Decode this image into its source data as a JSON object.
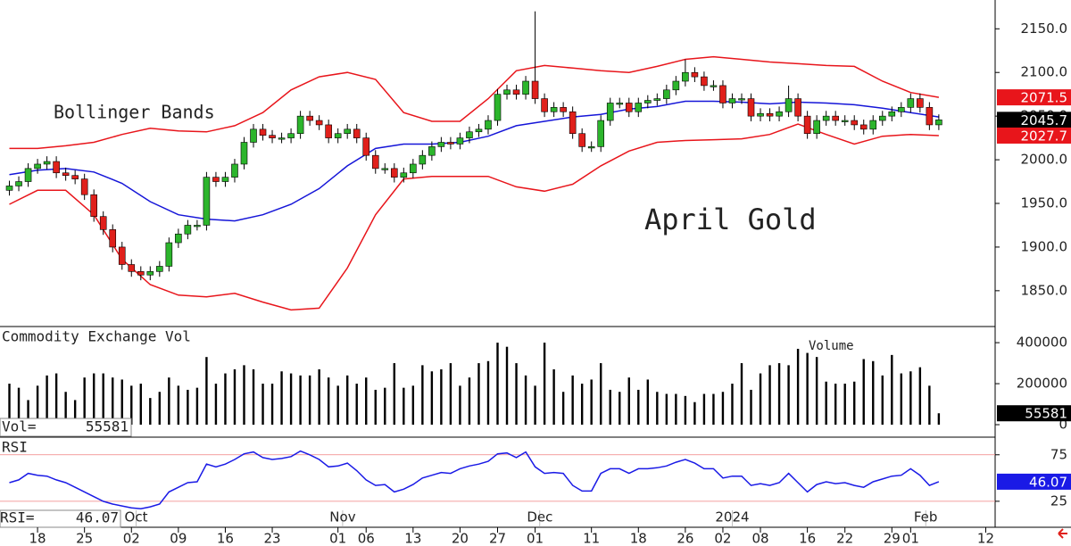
{
  "chart_data": [
    {
      "type": "candlestick",
      "title": "April Gold",
      "label": "Bollinger Bands",
      "xlim": [
        -1,
        105
      ],
      "x": [
        0,
        1,
        2,
        3,
        4,
        5,
        6,
        7,
        8,
        9,
        10,
        11,
        12,
        13,
        14,
        15,
        16,
        17,
        18,
        19,
        20,
        21,
        22,
        23,
        24,
        25,
        26,
        27,
        28,
        29,
        30,
        31,
        32,
        33,
        34,
        35,
        36,
        37,
        38,
        39,
        40,
        41,
        42,
        43,
        44,
        45,
        46,
        47,
        48,
        49,
        50,
        51,
        52,
        53,
        54,
        55,
        56,
        57,
        58,
        59,
        60,
        61,
        62,
        63,
        64,
        65,
        66,
        67,
        68,
        69,
        70,
        71,
        72,
        73,
        74,
        75,
        76,
        77,
        78,
        79,
        80,
        81,
        82,
        83,
        84,
        85,
        86,
        87,
        88,
        89,
        90,
        91,
        92,
        93,
        94,
        95,
        96,
        97,
        98,
        99
      ],
      "open": [
        1965,
        1970,
        1975,
        1990,
        1995,
        1998,
        1985,
        1982,
        1978,
        1960,
        1935,
        1920,
        1900,
        1880,
        1872,
        1868,
        1872,
        1878,
        1905,
        1915,
        1925,
        1925,
        1980,
        1975,
        1980,
        1995,
        2020,
        2035,
        2028,
        2025,
        2025,
        2030,
        2050,
        2045,
        2040,
        2025,
        2030,
        2035,
        2025,
        2005,
        1990,
        1990,
        1980,
        1985,
        1995,
        2005,
        2015,
        2020,
        2018,
        2025,
        2032,
        2035,
        2045,
        2075,
        2080,
        2075,
        2090,
        2070,
        2055,
        2060,
        2055,
        2030,
        2015,
        2015,
        2045,
        2065,
        2065,
        2055,
        2065,
        2068,
        2070,
        2080,
        2090,
        2100,
        2095,
        2085,
        2085,
        2065,
        2070,
        2070,
        2050,
        2053,
        2050,
        2055,
        2070,
        2050,
        2030,
        2045,
        2050,
        2045,
        2045,
        2040,
        2035,
        2045,
        2050,
        2055,
        2060,
        2070,
        2060,
        2040
      ],
      "high": [
        1976,
        1981,
        1996,
        2001,
        2004,
        2004,
        1991,
        1988,
        1984,
        1966,
        1941,
        1926,
        1906,
        1886,
        1878,
        1878,
        1884,
        1911,
        1921,
        1931,
        1931,
        1986,
        1986,
        1986,
        2001,
        2026,
        2041,
        2041,
        2034,
        2031,
        2036,
        2056,
        2056,
        2051,
        2046,
        2036,
        2041,
        2041,
        2031,
        2011,
        1996,
        1996,
        1991,
        2001,
        2011,
        2021,
        2026,
        2026,
        2031,
        2038,
        2041,
        2051,
        2081,
        2086,
        2086,
        2096,
        2170,
        2076,
        2066,
        2066,
        2061,
        2036,
        2021,
        2051,
        2071,
        2071,
        2071,
        2071,
        2074,
        2076,
        2086,
        2096,
        2115,
        2106,
        2101,
        2091,
        2091,
        2076,
        2076,
        2076,
        2059,
        2059,
        2061,
        2085,
        2076,
        2056,
        2051,
        2056,
        2056,
        2051,
        2051,
        2046,
        2051,
        2056,
        2061,
        2066,
        2076,
        2076,
        2066,
        2052
      ],
      "low": [
        1959,
        1964,
        1969,
        1984,
        1989,
        1979,
        1976,
        1972,
        1954,
        1929,
        1914,
        1894,
        1874,
        1866,
        1862,
        1862,
        1866,
        1872,
        1899,
        1909,
        1919,
        1919,
        1969,
        1969,
        1974,
        1989,
        2014,
        2022,
        2019,
        2019,
        2019,
        2024,
        2039,
        2034,
        2019,
        2019,
        2024,
        2019,
        1999,
        1984,
        1984,
        1974,
        1974,
        1979,
        1989,
        1999,
        2009,
        2012,
        2012,
        2019,
        2026,
        2029,
        2039,
        2069,
        2069,
        2069,
        2064,
        2049,
        2049,
        2049,
        2024,
        2009,
        2009,
        2009,
        2039,
        2059,
        2049,
        2049,
        2059,
        2062,
        2064,
        2074,
        2084,
        2089,
        2079,
        2079,
        2059,
        2059,
        2064,
        2044,
        2044,
        2044,
        2044,
        2049,
        2044,
        2024,
        2024,
        2039,
        2039,
        2039,
        2034,
        2029,
        2029,
        2039,
        2044,
        2049,
        2054,
        2054,
        2034,
        2034
      ],
      "close": [
        1970,
        1975,
        1990,
        1995,
        1998,
        1985,
        1982,
        1978,
        1960,
        1935,
        1920,
        1900,
        1880,
        1872,
        1868,
        1872,
        1878,
        1905,
        1915,
        1925,
        1925,
        1980,
        1975,
        1980,
        1995,
        2020,
        2035,
        2028,
        2025,
        2025,
        2030,
        2050,
        2045,
        2040,
        2025,
        2030,
        2035,
        2025,
        2005,
        1990,
        1990,
        1980,
        1985,
        1995,
        2005,
        2015,
        2020,
        2018,
        2025,
        2032,
        2035,
        2045,
        2075,
        2080,
        2075,
        2090,
        2070,
        2055,
        2060,
        2055,
        2030,
        2015,
        2015,
        2045,
        2065,
        2065,
        2055,
        2065,
        2068,
        2070,
        2080,
        2090,
        2100,
        2095,
        2085,
        2085,
        2065,
        2070,
        2070,
        2050,
        2053,
        2050,
        2055,
        2070,
        2050,
        2030,
        2045,
        2050,
        2045,
        2045,
        2040,
        2035,
        2045,
        2050,
        2055,
        2060,
        2070,
        2060,
        2040,
        2045.7
      ],
      "up_color": "#2cb52c",
      "down_color": "#e0201b",
      "close_label_color": "#000000",
      "bands": {
        "x": [
          0,
          3,
          6,
          9,
          12,
          15,
          18,
          21,
          24,
          27,
          30,
          33,
          36,
          39,
          42,
          45,
          48,
          51,
          54,
          57,
          60,
          63,
          66,
          69,
          72,
          75,
          78,
          81,
          84,
          87,
          90,
          93,
          96,
          99
        ],
        "series": [
          {
            "color": "#e8151b",
            "values": [
              2013,
              2013,
              2016,
              2020,
              2029,
              2036,
              2033,
              2032,
              2039,
              2054,
              2080,
              2095,
              2100,
              2092,
              2054,
              2044,
              2044,
              2070,
              2102,
              2108,
              2105,
              2102,
              2100,
              2107,
              2115,
              2118,
              2115,
              2112,
              2110,
              2108,
              2107,
              2090,
              2077,
              2071.5
            ]
          },
          {
            "color": "#1515d8",
            "values": [
              1983,
              1988,
              1990,
              1986,
              1973,
              1952,
              1937,
              1932,
              1930,
              1937,
              1949,
              1967,
              1993,
              2013,
              2018,
              2018,
              2020,
              2027,
              2039,
              2044,
              2049,
              2052,
              2058,
              2061,
              2067,
              2067,
              2066,
              2064,
              2066,
              2065,
              2063,
              2059,
              2054,
              2049
            ]
          },
          {
            "color": "#e8151b",
            "values": [
              1949,
              1965,
              1965,
              1937,
              1886,
              1857,
              1845,
              1843,
              1847,
              1837,
              1828,
              1830,
              1876,
              1937,
              1978,
              1981,
              1981,
              1981,
              1969,
              1964,
              1972,
              1993,
              2010,
              2020,
              2022,
              2023,
              2024,
              2029,
              2041,
              2029,
              2018,
              2027,
              2029,
              2027.7
            ]
          }
        ]
      },
      "ylim": [
        1810,
        2183
      ],
      "yticks": [
        {
          "value": 1850,
          "label": "1850.0"
        },
        {
          "value": 1900,
          "label": "1900.0"
        },
        {
          "value": 1950,
          "label": "1950.0"
        },
        {
          "value": 2000,
          "label": "2000.0"
        },
        {
          "value": 2050,
          "label": "2050.0"
        },
        {
          "value": 2100,
          "label": "2100.0"
        },
        {
          "value": 2150,
          "label": "2150.0"
        }
      ]
    },
    {
      "type": "bar",
      "title": "Commodity Exchange Vol",
      "label": "Volume",
      "readout_label": "Vol=",
      "xlim": [
        -1,
        105
      ],
      "x": [
        0,
        1,
        2,
        3,
        4,
        5,
        6,
        7,
        8,
        9,
        10,
        11,
        12,
        13,
        14,
        15,
        16,
        17,
        18,
        19,
        20,
        21,
        22,
        23,
        24,
        25,
        26,
        27,
        28,
        29,
        30,
        31,
        32,
        33,
        34,
        35,
        36,
        37,
        38,
        39,
        40,
        41,
        42,
        43,
        44,
        45,
        46,
        47,
        48,
        49,
        50,
        51,
        52,
        53,
        54,
        55,
        56,
        57,
        58,
        59,
        60,
        61,
        62,
        63,
        64,
        65,
        66,
        67,
        68,
        69,
        70,
        71,
        72,
        73,
        74,
        75,
        76,
        77,
        78,
        79,
        80,
        81,
        82,
        83,
        84,
        85,
        86,
        87,
        88,
        89,
        90,
        91,
        92,
        93,
        94,
        95,
        96,
        97,
        98,
        99
      ],
      "values": [
        200000,
        180000,
        120000,
        190000,
        240000,
        250000,
        160000,
        120000,
        230000,
        250000,
        250000,
        230000,
        220000,
        190000,
        200000,
        130000,
        160000,
        230000,
        190000,
        170000,
        180000,
        330000,
        200000,
        250000,
        270000,
        290000,
        270000,
        200000,
        200000,
        260000,
        250000,
        240000,
        240000,
        270000,
        230000,
        190000,
        240000,
        200000,
        230000,
        170000,
        180000,
        300000,
        180000,
        190000,
        290000,
        260000,
        270000,
        300000,
        190000,
        230000,
        300000,
        310000,
        400000,
        380000,
        300000,
        240000,
        190000,
        400000,
        270000,
        160000,
        240000,
        200000,
        220000,
        300000,
        170000,
        160000,
        230000,
        170000,
        220000,
        160000,
        150000,
        150000,
        140000,
        110000,
        150000,
        150000,
        160000,
        200000,
        300000,
        170000,
        250000,
        290000,
        300000,
        290000,
        370000,
        350000,
        330000,
        210000,
        200000,
        200000,
        210000,
        320000,
        310000,
        240000,
        340000,
        250000,
        260000,
        280000,
        190000,
        55581
      ],
      "color": "#000000",
      "ylim": [
        0,
        470000
      ],
      "yticks": [
        0,
        200000,
        400000
      ]
    },
    {
      "type": "line",
      "title": "RSI",
      "readout_label": "RSI=",
      "xlim": [
        -1,
        105
      ],
      "x": [
        0,
        1,
        2,
        3,
        4,
        5,
        6,
        7,
        8,
        9,
        10,
        11,
        12,
        13,
        14,
        15,
        16,
        17,
        18,
        19,
        20,
        21,
        22,
        23,
        24,
        25,
        26,
        27,
        28,
        29,
        30,
        31,
        32,
        33,
        34,
        35,
        36,
        37,
        38,
        39,
        40,
        41,
        42,
        43,
        44,
        45,
        46,
        47,
        48,
        49,
        50,
        51,
        52,
        53,
        54,
        55,
        56,
        57,
        58,
        59,
        60,
        61,
        62,
        63,
        64,
        65,
        66,
        67,
        68,
        69,
        70,
        71,
        72,
        73,
        74,
        75,
        76,
        77,
        78,
        79,
        80,
        81,
        82,
        83,
        84,
        85,
        86,
        87,
        88,
        89,
        90,
        91,
        92,
        93,
        94,
        95,
        96,
        97,
        98,
        99
      ],
      "values": [
        45,
        48,
        55,
        53,
        52,
        48,
        45,
        40,
        35,
        30,
        25,
        22,
        20,
        18,
        17,
        19,
        22,
        35,
        40,
        45,
        46,
        65,
        62,
        65,
        70,
        76,
        78,
        72,
        70,
        71,
        73,
        79,
        75,
        70,
        62,
        63,
        66,
        58,
        48,
        42,
        43,
        35,
        38,
        43,
        50,
        53,
        56,
        55,
        60,
        63,
        65,
        68,
        76,
        77,
        72,
        78,
        62,
        55,
        56,
        55,
        42,
        36,
        36,
        55,
        60,
        60,
        55,
        60,
        60,
        61,
        63,
        67,
        70,
        66,
        60,
        60,
        50,
        52,
        52,
        42,
        44,
        42,
        45,
        55,
        45,
        35,
        43,
        46,
        44,
        45,
        42,
        40,
        46,
        49,
        52,
        53,
        60,
        53,
        42,
        46.07
      ],
      "color": "#1a1ae6",
      "grid_color": "#f08080",
      "ylim": [
        -2,
        93
      ],
      "yticks": [
        25,
        75
      ],
      "xticks": [
        {
          "value": 3,
          "label": "18"
        },
        {
          "value": 8,
          "label": "25"
        },
        {
          "value": 13,
          "label": "02"
        },
        {
          "value": 18,
          "label": "09"
        },
        {
          "value": 23,
          "label": "16"
        },
        {
          "value": 28,
          "label": "23"
        },
        {
          "value": 35,
          "label": "01"
        },
        {
          "value": 38,
          "label": "06"
        },
        {
          "value": 43,
          "label": "13"
        },
        {
          "value": 48,
          "label": "20"
        },
        {
          "value": 52,
          "label": "27"
        },
        {
          "value": 56,
          "label": "01"
        },
        {
          "value": 62,
          "label": "11"
        },
        {
          "value": 67,
          "label": "18"
        },
        {
          "value": 72,
          "label": "26"
        },
        {
          "value": 76,
          "label": "02"
        },
        {
          "value": 80,
          "label": "08"
        },
        {
          "value": 85,
          "label": "16"
        },
        {
          "value": 89,
          "label": "22"
        },
        {
          "value": 94,
          "label": "29"
        },
        {
          "value": 96,
          "label": "01"
        },
        {
          "value": 104,
          "label": "12"
        }
      ],
      "period_labels": [
        {
          "value": 13.5,
          "label": "Oct"
        },
        {
          "value": 35.5,
          "label": "Nov"
        },
        {
          "value": 56.5,
          "label": "Dec"
        },
        {
          "value": 77,
          "label": "2024"
        },
        {
          "value": 97.6,
          "label": "Feb"
        }
      ]
    }
  ]
}
